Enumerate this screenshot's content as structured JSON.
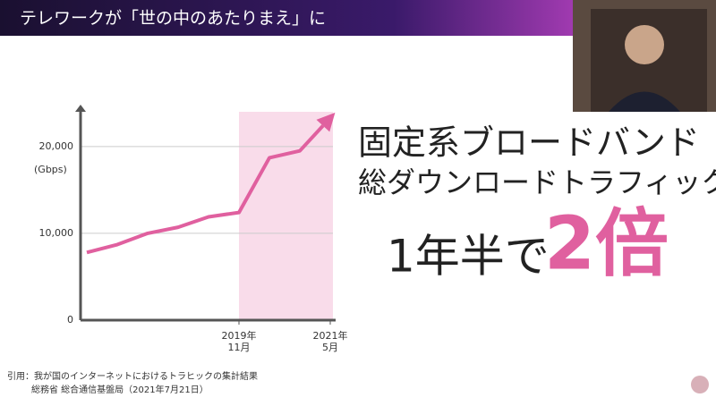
{
  "header": {
    "title": "テレワークが「世の中のあたりまえ」に"
  },
  "chart_data": {
    "type": "line",
    "y_label": "(Gbps)",
    "categories": [
      null,
      null,
      null,
      null,
      null,
      "2019年\n11月",
      null,
      null,
      "2021年\n5月"
    ],
    "series": [
      {
        "color": "#e0609f",
        "values": [
          7800,
          8700,
          10000,
          10700,
          11900,
          12400,
          18700,
          19500,
          23300
        ]
      }
    ],
    "ylim": [
      0,
      24000
    ],
    "yticks": [
      0,
      {
        "value": 10000,
        "label": "10,000"
      },
      {
        "value": 20000,
        "label": "20,000"
      }
    ],
    "grid": true
  },
  "headline": {
    "line1": "固定系ブロードバンド",
    "line2": "総ダウンロードトラフィック",
    "prefix": "1年半で",
    "highlight": "2倍"
  },
  "citation": {
    "line1": "引用：我が国のインターネットにおけるトラヒックの集計結果",
    "line2": "総務省 総合通信基盤局（2021年7月21日）"
  }
}
